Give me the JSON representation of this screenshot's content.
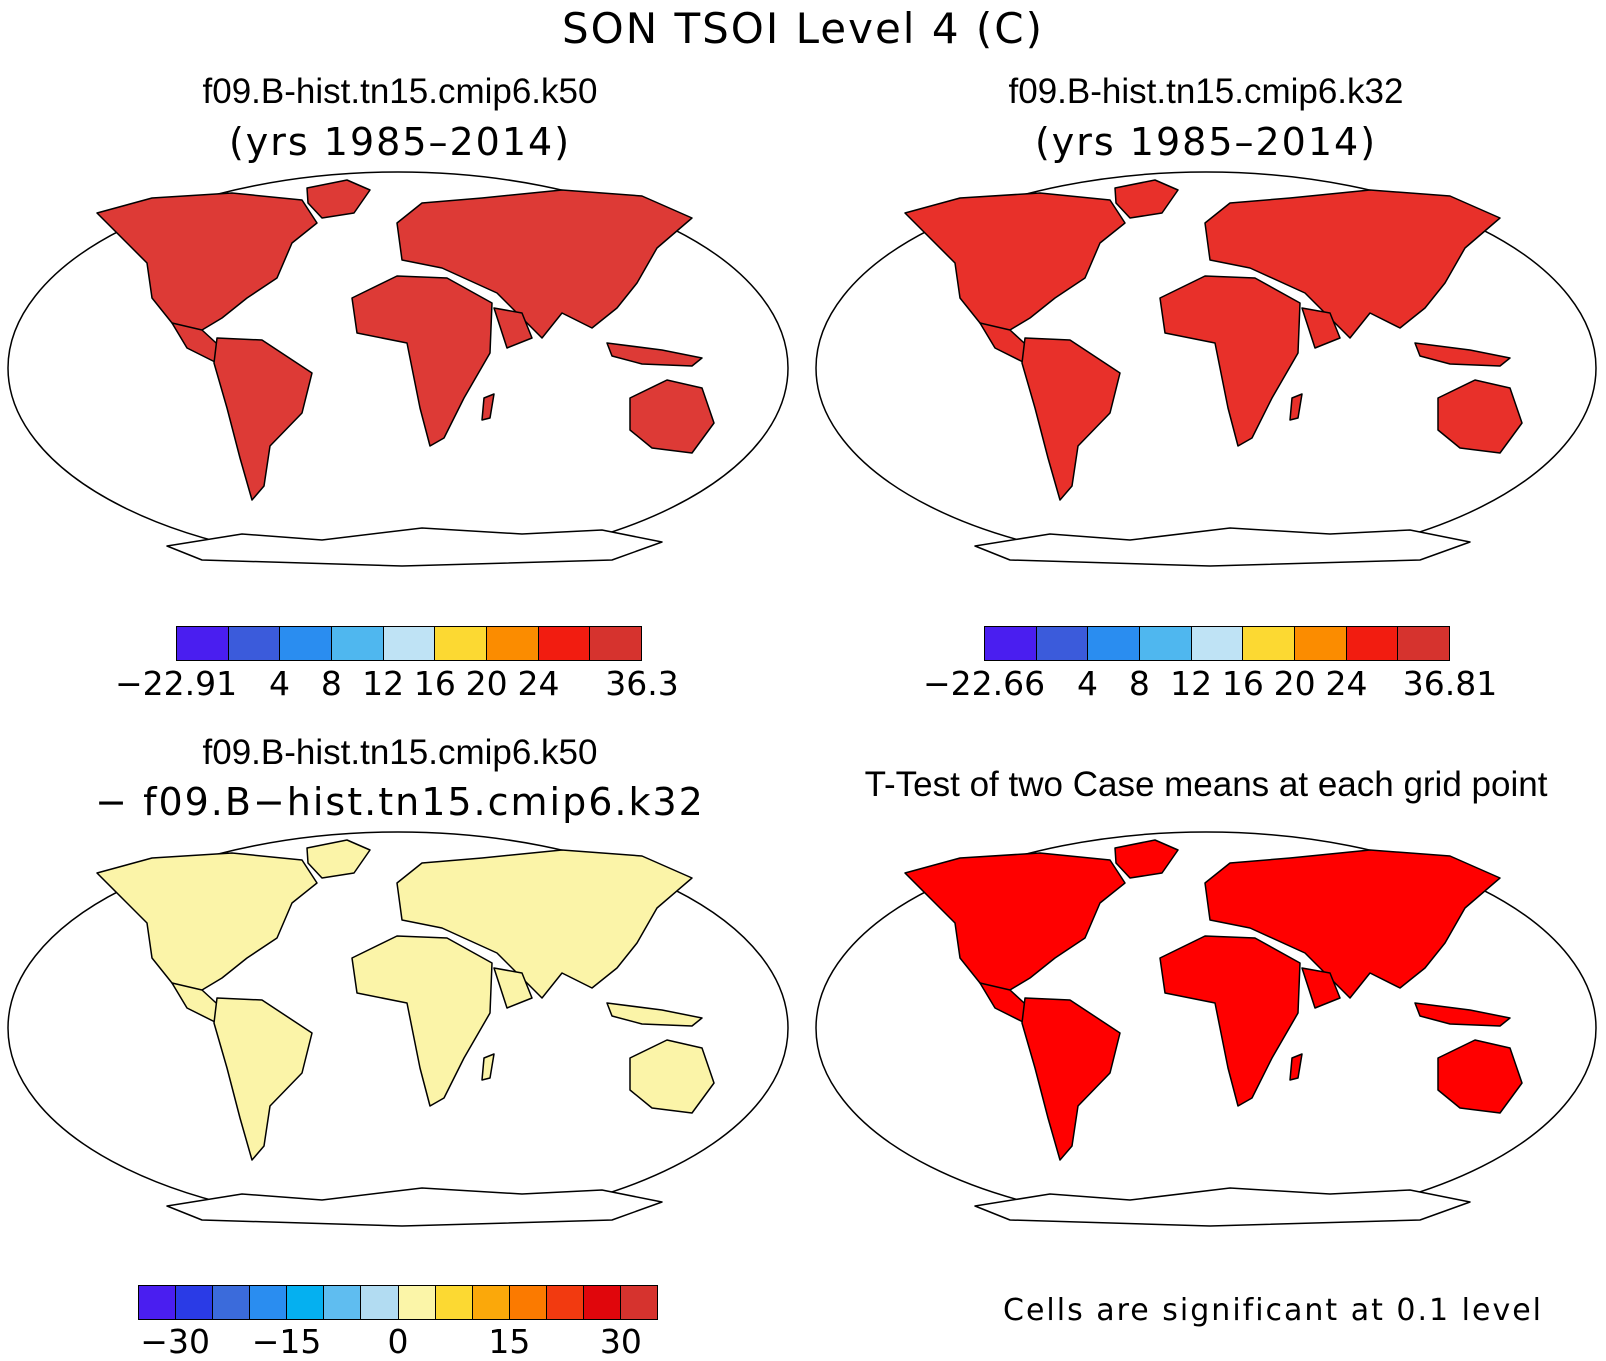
{
  "title": "SON TSOI Level 4 (C)",
  "panels": [
    {
      "id": "k50",
      "case": "f09.B-hist.tn15.cmip6.k50",
      "subtitle": "(yrs 1985–2014)",
      "fill": "#dd3a36"
    },
    {
      "id": "k32",
      "case": "f09.B-hist.tn15.cmip6.k32",
      "subtitle": "(yrs 1985–2014)",
      "fill": "#e8302a"
    },
    {
      "id": "diff",
      "case": "f09.B-hist.tn15.cmip6.k50",
      "subtitle": "− f09.B−hist.tn15.cmip6.k32",
      "fill": "#fbf4a8"
    },
    {
      "id": "ttest",
      "case": "T-Test of two Case means at each grid point",
      "subtitle": "",
      "fill": "#ff0000"
    }
  ],
  "colorbars": [
    {
      "colors": [
        "#4a1ef0",
        "#3b5bdb",
        "#2a8df0",
        "#4fb7ef",
        "#bfe3f5",
        "#fcd932",
        "#fb8c00",
        "#f21c10",
        "#d6332e"
      ],
      "labels": [
        {
          "text": "−22.91",
          "pos": 0.0
        },
        {
          "text": "4",
          "pos": 0.2222
        },
        {
          "text": "8",
          "pos": 0.3333
        },
        {
          "text": "12",
          "pos": 0.4444
        },
        {
          "text": "16",
          "pos": 0.5556
        },
        {
          "text": "20",
          "pos": 0.6667
        },
        {
          "text": "24",
          "pos": 0.7778
        },
        {
          "text": "36.3",
          "pos": 1.0
        }
      ]
    },
    {
      "colors": [
        "#4a1ef0",
        "#3b5bdb",
        "#2a8df0",
        "#4fb7ef",
        "#bfe3f5",
        "#fcd932",
        "#fb8c00",
        "#f21c10",
        "#d6332e"
      ],
      "labels": [
        {
          "text": "−22.66",
          "pos": 0.0
        },
        {
          "text": "4",
          "pos": 0.2222
        },
        {
          "text": "8",
          "pos": 0.3333
        },
        {
          "text": "12",
          "pos": 0.4444
        },
        {
          "text": "16",
          "pos": 0.5556
        },
        {
          "text": "20",
          "pos": 0.6667
        },
        {
          "text": "24",
          "pos": 0.7778
        },
        {
          "text": "36.81",
          "pos": 1.0
        }
      ]
    },
    {
      "colors": [
        "#4a1ef0",
        "#2a3be6",
        "#3b6bdb",
        "#2a8df0",
        "#05b0f0",
        "#5fbdf0",
        "#b2dcf2",
        "#fbf5a8",
        "#fcd932",
        "#fba80a",
        "#fb7a00",
        "#f23a10",
        "#e0060c",
        "#d6332e"
      ],
      "labels": [
        {
          "text": "−30",
          "pos": 0.0714
        },
        {
          "text": "−15",
          "pos": 0.2857
        },
        {
          "text": "0",
          "pos": 0.5
        },
        {
          "text": "15",
          "pos": 0.7143
        },
        {
          "text": "30",
          "pos": 0.9286
        }
      ]
    }
  ],
  "significance_note": "Cells are significant at 0.1 level"
}
